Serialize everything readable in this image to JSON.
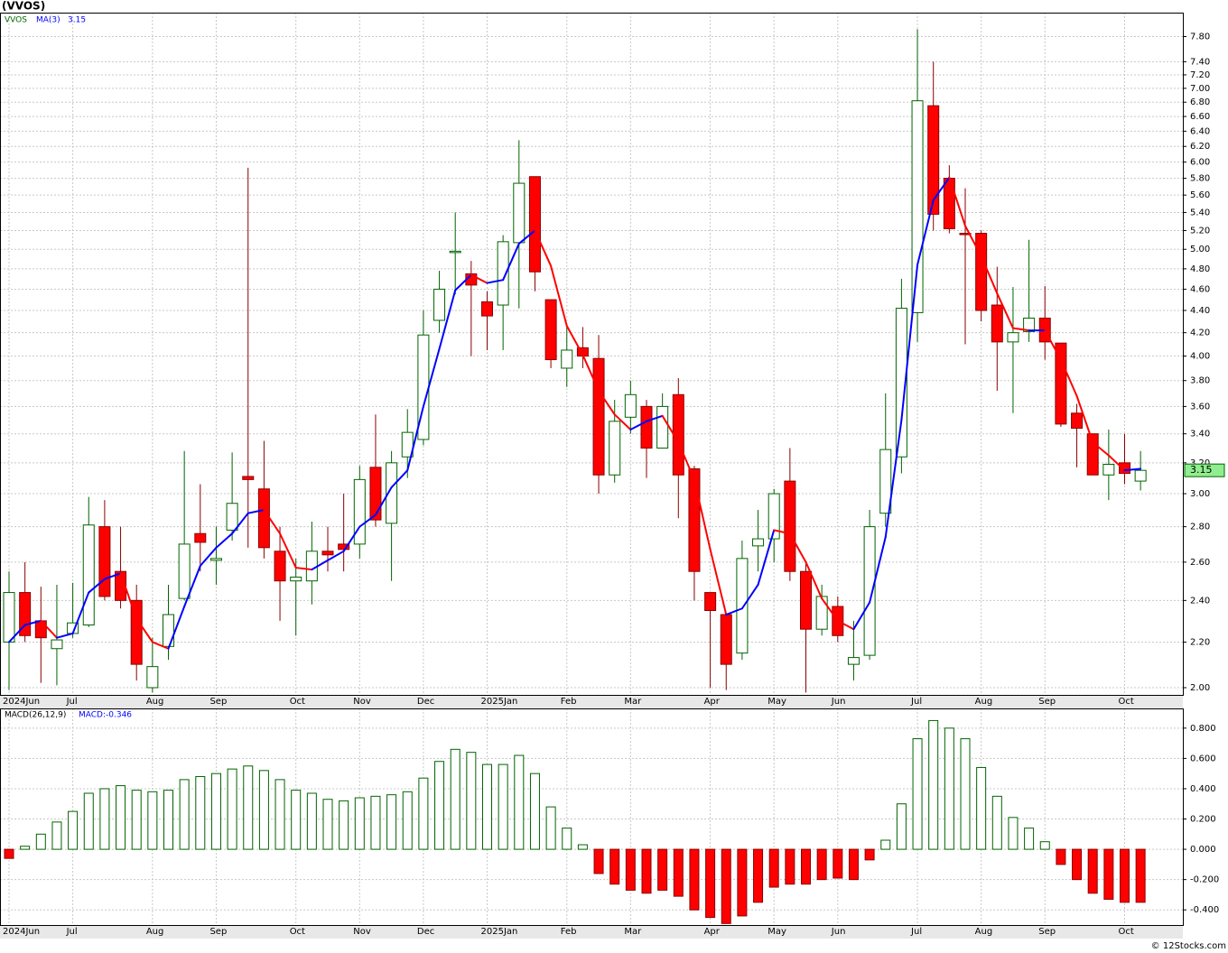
{
  "chart_data": [
    {
      "type": "candlestick",
      "title": "(VVOS)",
      "symbol": "VVOS",
      "symbol_color": "#006400",
      "categories": [
        "2024Jun",
        null,
        null,
        null,
        "Jul",
        null,
        null,
        null,
        null,
        "Aug",
        null,
        null,
        null,
        "Sep",
        null,
        null,
        null,
        null,
        "Oct",
        null,
        null,
        null,
        "Nov",
        null,
        null,
        null,
        "Dec",
        null,
        null,
        null,
        "2025Jan",
        null,
        null,
        null,
        null,
        "Feb",
        null,
        null,
        null,
        "Mar",
        null,
        null,
        null,
        null,
        "Apr",
        null,
        null,
        null,
        "May",
        null,
        null,
        null,
        "Jun",
        null,
        null,
        null,
        null,
        "Jul",
        null,
        null,
        null,
        "Aug",
        null,
        null,
        null,
        "Sep",
        null,
        null,
        null,
        null,
        "Oct",
        null
      ],
      "open": [
        2.2,
        2.44,
        2.3,
        2.17,
        2.24,
        2.28,
        2.8,
        2.55,
        2.4,
        2.0,
        2.18,
        2.41,
        2.76,
        2.61,
        2.78,
        3.11,
        3.03,
        2.66,
        2.5,
        2.5,
        2.66,
        2.7,
        2.7,
        3.17,
        2.82,
        3.24,
        3.36,
        4.31,
        4.97,
        4.75,
        4.48,
        4.45,
        5.07,
        5.82,
        4.5,
        3.9,
        4.07,
        3.98,
        3.12,
        3.52,
        3.6,
        3.3,
        3.69,
        3.16,
        2.44,
        2.33,
        2.15,
        2.69,
        2.73,
        3.08,
        2.55,
        2.26,
        2.37,
        2.1,
        2.14,
        2.88,
        3.24,
        4.38,
        6.75,
        5.8,
        5.17,
        5.17,
        4.45,
        4.12,
        4.21,
        4.33,
        4.11,
        3.55,
        3.4,
        3.12,
        3.2,
        3.08
      ],
      "high": [
        2.55,
        2.6,
        2.47,
        2.48,
        2.49,
        2.98,
        2.96,
        2.8,
        2.48,
        2.22,
        2.48,
        3.28,
        3.06,
        2.8,
        3.27,
        5.93,
        3.35,
        2.8,
        2.62,
        2.83,
        2.8,
        3.0,
        3.18,
        3.54,
        3.28,
        3.58,
        4.4,
        4.78,
        5.4,
        4.88,
        4.58,
        5.15,
        6.28,
        5.82,
        4.5,
        4.25,
        4.25,
        4.18,
        3.65,
        3.8,
        3.65,
        3.7,
        3.82,
        3.18,
        2.44,
        2.33,
        2.72,
        2.9,
        3.03,
        3.3,
        2.6,
        2.48,
        2.42,
        2.3,
        2.9,
        3.7,
        4.7,
        7.92,
        7.4,
        5.96,
        5.68,
        5.2,
        4.82,
        4.62,
        5.1,
        4.63,
        4.11,
        3.62,
        3.4,
        3.43,
        3.4,
        3.28
      ],
      "low": [
        1.99,
        2.2,
        2.02,
        2.01,
        2.22,
        2.27,
        2.4,
        2.36,
        2.03,
        1.98,
        2.12,
        2.4,
        2.55,
        2.48,
        2.72,
        2.68,
        2.62,
        2.3,
        2.23,
        2.38,
        2.55,
        2.55,
        2.62,
        2.8,
        2.5,
        3.1,
        3.32,
        4.2,
        4.55,
        4.0,
        4.05,
        4.05,
        4.42,
        4.58,
        3.9,
        3.75,
        3.9,
        3.0,
        3.07,
        3.4,
        3.1,
        3.3,
        2.85,
        2.4,
        2.0,
        1.99,
        2.12,
        2.55,
        2.6,
        2.5,
        1.98,
        2.23,
        2.2,
        2.03,
        2.12,
        2.8,
        3.13,
        4.12,
        5.2,
        5.17,
        4.1,
        4.3,
        3.72,
        3.55,
        4.12,
        3.97,
        3.45,
        3.17,
        3.12,
        2.96,
        3.06,
        3.02
      ],
      "close": [
        2.44,
        2.23,
        2.22,
        2.21,
        2.29,
        2.81,
        2.42,
        2.4,
        2.1,
        2.09,
        2.33,
        2.7,
        2.71,
        2.62,
        2.94,
        3.09,
        2.68,
        2.5,
        2.52,
        2.66,
        2.64,
        2.67,
        3.09,
        2.84,
        3.2,
        3.41,
        4.18,
        4.6,
        4.98,
        4.64,
        4.35,
        5.08,
        5.74,
        4.77,
        3.97,
        4.05,
        4.0,
        3.12,
        3.49,
        3.69,
        3.3,
        3.6,
        3.12,
        2.55,
        2.35,
        2.1,
        2.62,
        2.73,
        3.0,
        2.55,
        2.26,
        2.42,
        2.23,
        2.13,
        2.8,
        3.29,
        4.42,
        6.82,
        5.38,
        5.22,
        5.16,
        4.4,
        4.12,
        4.2,
        4.33,
        4.12,
        3.47,
        3.44,
        3.12,
        3.19,
        3.13,
        3.15
      ],
      "up_color": "#006400",
      "down_color": "#ff0000",
      "ma": {
        "name": "MA(3)",
        "up_color": "#0000ff",
        "down_color": "#ff0000",
        "values": [
          2.2,
          2.28,
          2.3,
          2.22,
          2.24,
          2.44,
          2.51,
          2.54,
          2.31,
          2.2,
          2.17,
          2.37,
          2.58,
          2.68,
          2.76,
          2.88,
          2.9,
          2.76,
          2.57,
          2.56,
          2.61,
          2.66,
          2.8,
          2.87,
          3.04,
          3.15,
          3.6,
          4.06,
          4.59,
          4.74,
          4.66,
          4.69,
          5.06,
          5.2,
          4.83,
          4.26,
          4.01,
          3.72,
          3.54,
          3.43,
          3.49,
          3.53,
          3.34,
          3.09,
          2.67,
          2.33,
          2.36,
          2.48,
          2.78,
          2.76,
          2.6,
          2.41,
          2.3,
          2.26,
          2.39,
          2.74,
          3.5,
          4.84,
          5.54,
          5.81,
          5.25,
          4.93,
          4.56,
          4.24,
          4.22,
          4.22,
          3.97,
          3.68,
          3.34,
          3.25,
          3.15,
          3.16
        ]
      },
      "last_value": 3.15,
      "log_scale": true,
      "grid": true,
      "ylim": [
        1.97,
        8.2
      ],
      "yticks": [
        {
          "value": 2,
          "label": "2.00"
        },
        {
          "value": 2.2,
          "label": "2.20"
        },
        {
          "value": 2.4,
          "label": "2.40"
        },
        {
          "value": 2.6,
          "label": "2.60"
        },
        {
          "value": 2.8,
          "label": "2.80"
        },
        {
          "value": 3,
          "label": "3.00"
        },
        {
          "value": 3.2,
          "label": "3.20"
        },
        {
          "value": 3.4,
          "label": "3.40"
        },
        {
          "value": 3.6,
          "label": "3.60"
        },
        {
          "value": 3.8,
          "label": "3.80"
        },
        {
          "value": 4,
          "label": "4.00"
        },
        {
          "value": 4.2,
          "label": "4.20"
        },
        {
          "value": 4.4,
          "label": "4.40"
        },
        {
          "value": 4.6,
          "label": "4.60"
        },
        {
          "value": 4.8,
          "label": "4.80"
        },
        {
          "value": 5,
          "label": "5.00"
        },
        {
          "value": 5.2,
          "label": "5.20"
        },
        {
          "value": 5.4,
          "label": "5.40"
        },
        {
          "value": 5.6,
          "label": "5.60"
        },
        {
          "value": 5.8,
          "label": "5.80"
        },
        {
          "value": 6,
          "label": "6.00"
        },
        {
          "value": 6.2,
          "label": "6.20"
        },
        {
          "value": 6.4,
          "label": "6.40"
        },
        {
          "value": 6.6,
          "label": "6.60"
        },
        {
          "value": 6.8,
          "label": "6.80"
        },
        {
          "value": 7,
          "label": "7.00"
        },
        {
          "value": 7.2,
          "label": "7.20"
        },
        {
          "value": 7.4,
          "label": "7.40"
        },
        {
          "value": 7.8,
          "label": "7.80"
        }
      ]
    },
    {
      "type": "bar",
      "title": "MACD(26,12,9)",
      "label": "MACD:-0.346",
      "categories": [
        "2024Jun",
        null,
        null,
        null,
        "Jul",
        null,
        null,
        null,
        null,
        "Aug",
        null,
        null,
        null,
        "Sep",
        null,
        null,
        null,
        null,
        "Oct",
        null,
        null,
        null,
        "Nov",
        null,
        null,
        null,
        "Dec",
        null,
        null,
        null,
        "2025Jan",
        null,
        null,
        null,
        null,
        "Feb",
        null,
        null,
        null,
        "Mar",
        null,
        null,
        null,
        null,
        "Apr",
        null,
        null,
        null,
        "May",
        null,
        null,
        null,
        "Jun",
        null,
        null,
        null,
        null,
        "Jul",
        null,
        null,
        null,
        "Aug",
        null,
        null,
        null,
        "Sep",
        null,
        null,
        null,
        null,
        "Oct",
        null
      ],
      "values": [
        -0.06,
        0.02,
        0.1,
        0.18,
        0.25,
        0.37,
        0.4,
        0.42,
        0.39,
        0.38,
        0.39,
        0.46,
        0.48,
        0.5,
        0.53,
        0.55,
        0.52,
        0.46,
        0.39,
        0.37,
        0.33,
        0.32,
        0.34,
        0.35,
        0.36,
        0.38,
        0.47,
        0.58,
        0.66,
        0.64,
        0.56,
        0.56,
        0.62,
        0.5,
        0.28,
        0.14,
        0.03,
        -0.16,
        -0.23,
        -0.27,
        -0.29,
        -0.27,
        -0.31,
        -0.4,
        -0.45,
        -0.49,
        -0.44,
        -0.35,
        -0.25,
        -0.23,
        -0.23,
        -0.2,
        -0.19,
        -0.2,
        -0.07,
        0.06,
        0.3,
        0.73,
        0.85,
        0.8,
        0.73,
        0.54,
        0.35,
        0.21,
        0.14,
        0.05,
        -0.1,
        -0.2,
        -0.29,
        -0.33,
        -0.35,
        -0.35
      ],
      "up_color": "#006400",
      "down_color": "#ff0000",
      "grid": true,
      "ylim": [
        -0.5,
        0.93
      ],
      "yticks": [
        {
          "value": -0.4,
          "label": "-0.400"
        },
        {
          "value": -0.2,
          "label": "-0.200"
        },
        {
          "value": 0,
          "label": "0.000"
        },
        {
          "value": 0.2,
          "label": "0.200"
        },
        {
          "value": 0.4,
          "label": "0.400"
        },
        {
          "value": 0.6,
          "label": "0.600"
        },
        {
          "value": 0.8,
          "label": "0.800"
        }
      ]
    }
  ],
  "watermark": "© 12Stocks.com"
}
